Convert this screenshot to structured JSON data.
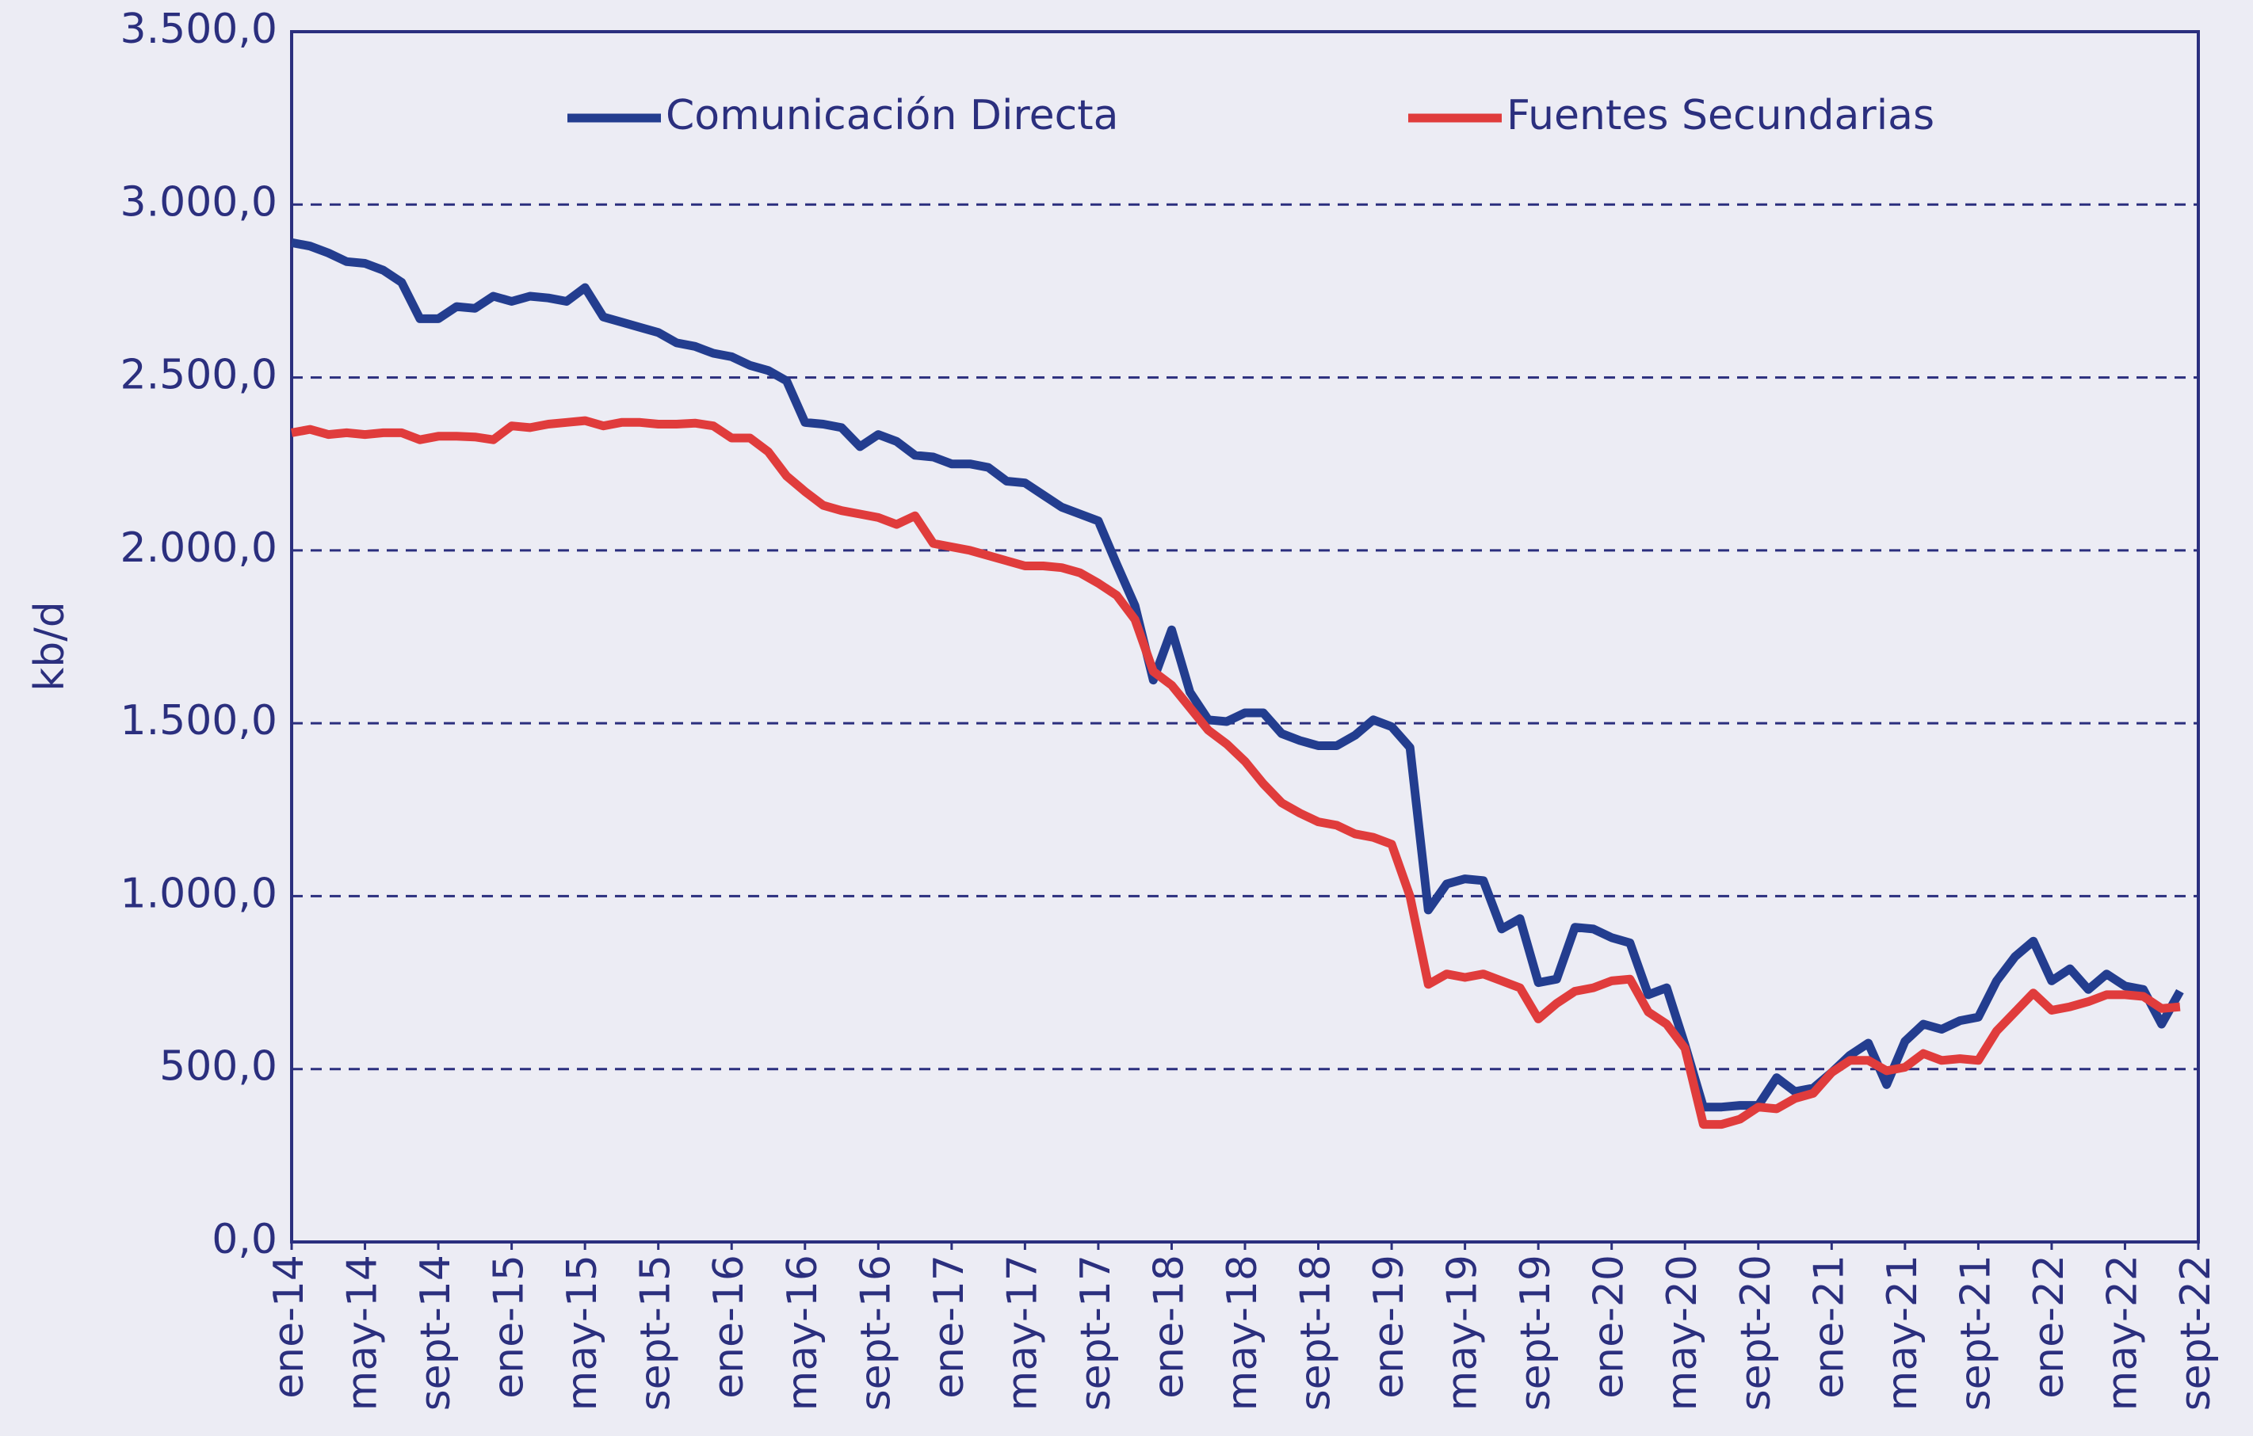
{
  "chart_data": {
    "type": "line",
    "y_label": "kb/d",
    "categories": [
      "ene-14",
      null,
      null,
      null,
      "may-14",
      null,
      null,
      null,
      "sept-14",
      null,
      null,
      null,
      "ene-15",
      null,
      null,
      null,
      "may-15",
      null,
      null,
      null,
      "sept-15",
      null,
      null,
      null,
      "ene-16",
      null,
      null,
      null,
      "may-16",
      null,
      null,
      null,
      "sept-16",
      null,
      null,
      null,
      "ene-17",
      null,
      null,
      null,
      "may-17",
      null,
      null,
      null,
      "sept-17",
      null,
      null,
      null,
      "ene-18",
      null,
      null,
      null,
      "may-18",
      null,
      null,
      null,
      "sept-18",
      null,
      null,
      null,
      "ene-19",
      null,
      null,
      null,
      "may-19",
      null,
      null,
      null,
      "sept-19",
      null,
      null,
      null,
      "ene-20",
      null,
      null,
      null,
      "may-20",
      null,
      null,
      null,
      "sept-20",
      null,
      null,
      null,
      "ene-21",
      null,
      null,
      null,
      "may-21",
      null,
      null,
      null,
      "sept-21",
      null,
      null,
      null,
      "ene-22",
      null,
      null,
      null,
      "may-22",
      null,
      null,
      null,
      "sept-22"
    ],
    "series": [
      {
        "name": "Comunicación Directa",
        "color": "#233d8f",
        "values": [
          2890,
          2880,
          2860,
          2835,
          2830,
          2810,
          2775,
          2670,
          2670,
          2705,
          2700,
          2735,
          2720,
          2735,
          2730,
          2720,
          2760,
          2675,
          2660,
          2645,
          2630,
          2600,
          2590,
          2570,
          2560,
          2535,
          2520,
          2490,
          2370,
          2365,
          2355,
          2300,
          2335,
          2315,
          2275,
          2270,
          2250,
          2250,
          2240,
          2200,
          2195,
          2160,
          2125,
          2105,
          2085,
          1960,
          1840,
          1625,
          1770,
          1590,
          1510,
          1505,
          1530,
          1530,
          1470,
          1450,
          1435,
          1435,
          1465,
          1510,
          1490,
          1430,
          960,
          1035,
          1050,
          1045,
          905,
          935,
          750,
          760,
          910,
          905,
          880,
          865,
          715,
          735,
          570,
          390,
          390,
          395,
          395,
          475,
          435,
          445,
          490,
          540,
          575,
          455,
          580,
          630,
          615,
          640,
          650,
          755,
          825,
          870,
          755,
          790,
          730,
          775,
          740,
          730,
          630,
          725,
          null
        ]
      },
      {
        "name": "Fuentes Secundarias",
        "color": "#e03c3c",
        "values": [
          2340,
          2350,
          2335,
          2340,
          2335,
          2340,
          2340,
          2320,
          2330,
          2330,
          2328,
          2320,
          2360,
          2355,
          2365,
          2370,
          2375,
          2360,
          2370,
          2370,
          2365,
          2365,
          2368,
          2360,
          2325,
          2325,
          2285,
          2215,
          2170,
          2130,
          2115,
          2105,
          2095,
          2075,
          2100,
          2020,
          2010,
          2000,
          1985,
          1970,
          1955,
          1955,
          1950,
          1935,
          1905,
          1870,
          1800,
          1650,
          1610,
          1545,
          1480,
          1440,
          1390,
          1325,
          1270,
          1240,
          1215,
          1205,
          1180,
          1170,
          1150,
          1000,
          745,
          775,
          765,
          775,
          755,
          735,
          645,
          690,
          725,
          735,
          755,
          760,
          665,
          630,
          560,
          340,
          340,
          355,
          390,
          385,
          415,
          430,
          490,
          525,
          525,
          495,
          505,
          545,
          525,
          530,
          525,
          610,
          665,
          720,
          670,
          680,
          695,
          715,
          715,
          710,
          675,
          680,
          null
        ]
      }
    ],
    "ylim": [
      0,
      3500
    ],
    "yticks": [
      {
        "value": 0,
        "label": "0,0"
      },
      {
        "value": 500,
        "label": "500,0"
      },
      {
        "value": 1000,
        "label": "1.000,0"
      },
      {
        "value": 1500,
        "label": "1.500,0"
      },
      {
        "value": 2000,
        "label": "2.000,0"
      },
      {
        "value": 2500,
        "label": "2.500,0"
      },
      {
        "value": 3000,
        "label": "3.000,0"
      },
      {
        "value": 3500,
        "label": "3.500,0"
      }
    ],
    "grid": true,
    "legend": "top"
  }
}
